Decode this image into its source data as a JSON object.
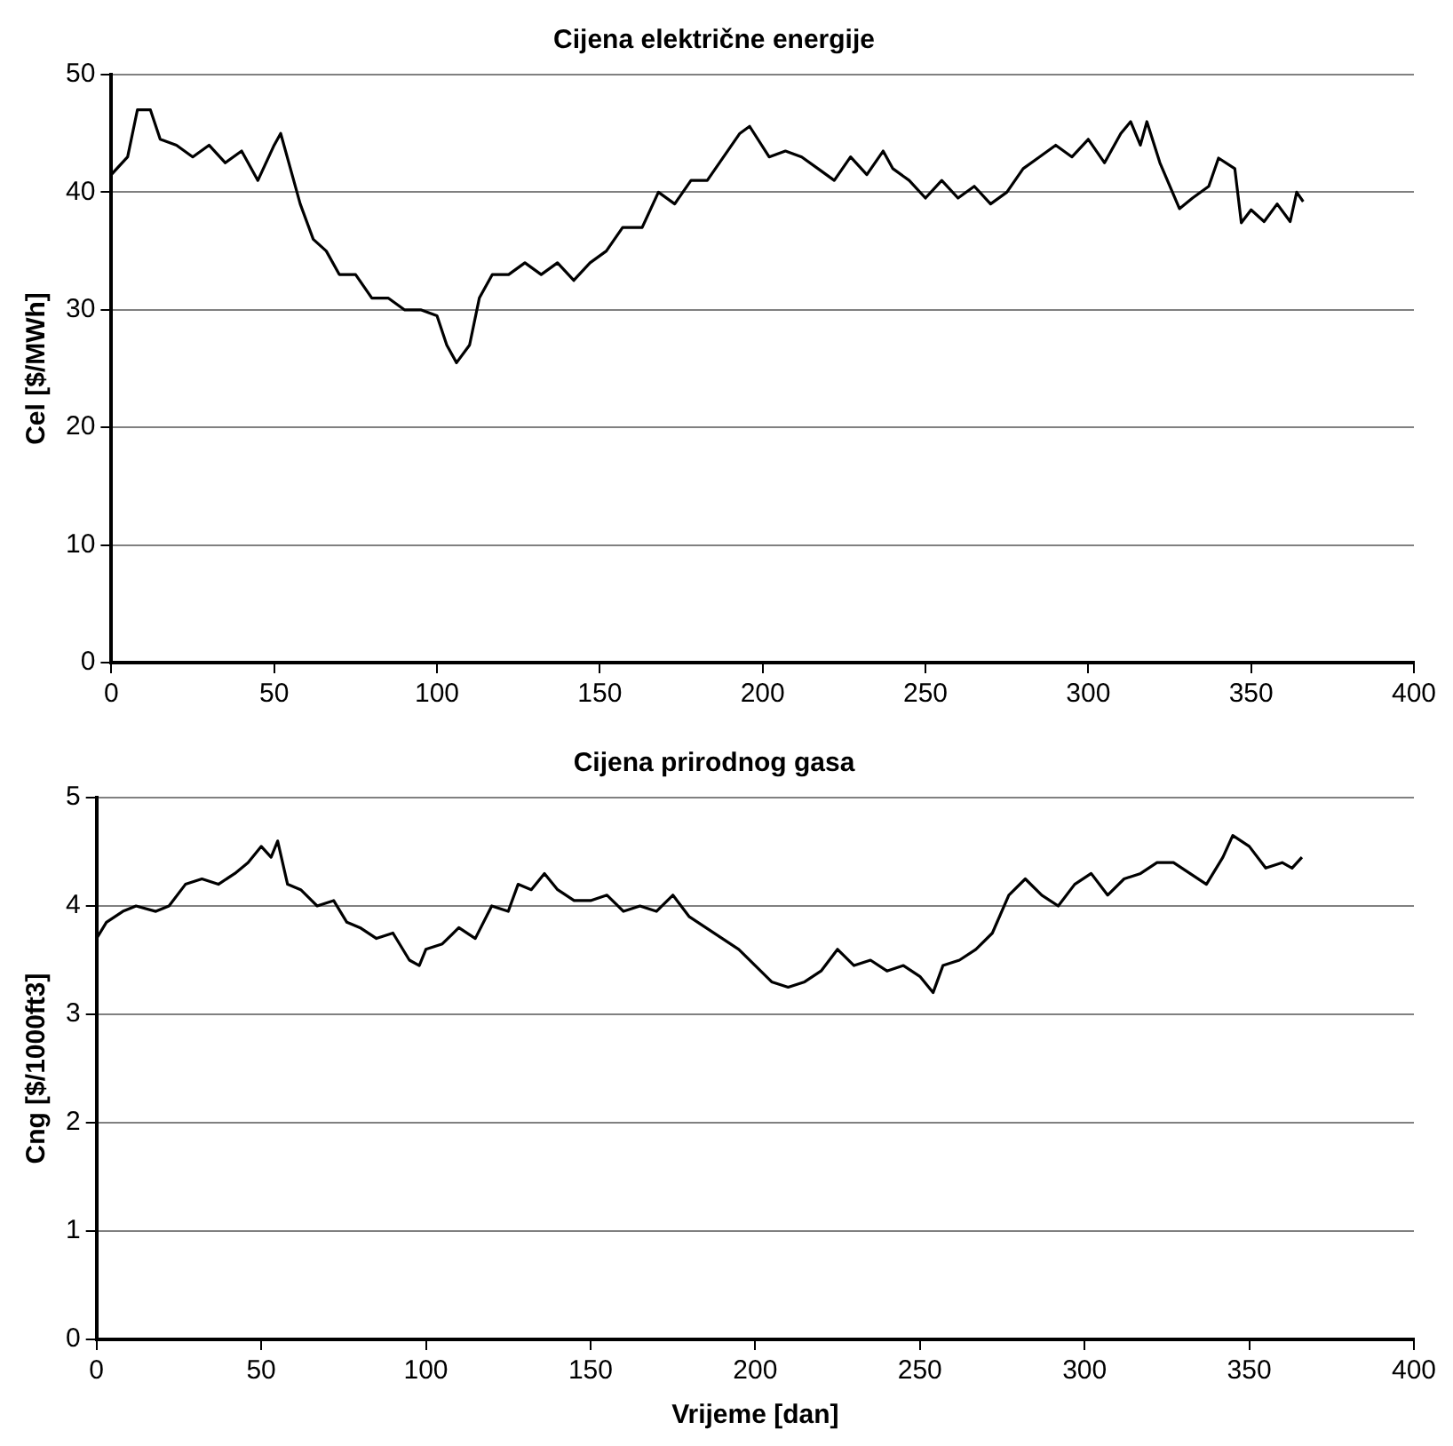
{
  "chart_data": [
    {
      "type": "line",
      "title": "Cijena električne energije",
      "ylabel": "Cel [$/MWh]",
      "xlim": [
        0,
        400
      ],
      "xticks": [
        0,
        50,
        100,
        150,
        200,
        250,
        300,
        350,
        400
      ],
      "ylim": [
        0,
        50
      ],
      "yticks": [
        0,
        10,
        20,
        30,
        40,
        50
      ],
      "grid": "y",
      "legend": false,
      "marker": "none",
      "line_style": "solid",
      "x": [
        0,
        5,
        8,
        12,
        15,
        20,
        25,
        30,
        35,
        40,
        45,
        50,
        52,
        55,
        58,
        62,
        66,
        70,
        75,
        80,
        85,
        90,
        95,
        100,
        103,
        106,
        110,
        113,
        117,
        122,
        127,
        132,
        137,
        142,
        147,
        152,
        157,
        163,
        168,
        173,
        178,
        183,
        188,
        193,
        196,
        202,
        207,
        212,
        217,
        222,
        227,
        232,
        237,
        240,
        245,
        250,
        255,
        260,
        265,
        270,
        275,
        280,
        285,
        290,
        295,
        300,
        305,
        310,
        313,
        316,
        318,
        322,
        328,
        332,
        337,
        340,
        345,
        347,
        350,
        354,
        358,
        362,
        364,
        366
      ],
      "series": [
        {
          "color": "#000000",
          "values": [
            41.5,
            43,
            47,
            47,
            44.5,
            44,
            43,
            44,
            42.5,
            43.5,
            41,
            44,
            45,
            42,
            39,
            36,
            35,
            33,
            33,
            31,
            31,
            30,
            30,
            29.5,
            27,
            25.5,
            27,
            31,
            33,
            33,
            34,
            33,
            34,
            32.5,
            34,
            35,
            37,
            37,
            40,
            39,
            41,
            41,
            43,
            45,
            45.6,
            43,
            43.5,
            43,
            42,
            41,
            43,
            41.5,
            43.5,
            42,
            41,
            39.5,
            41,
            39.5,
            40.5,
            39,
            40,
            42,
            43,
            44,
            43,
            44.5,
            42.5,
            45,
            46,
            44,
            46,
            42.5,
            38.6,
            39.5,
            40.5,
            42.9,
            42,
            37.4,
            38.5,
            37.5,
            39,
            37.5,
            40,
            39.2
          ]
        }
      ]
    },
    {
      "type": "line",
      "title": "Cijena prirodnog gasa",
      "xlabel": "Vrijeme [dan]",
      "ylabel": "Cng [$/1000ft3]",
      "xlim": [
        0,
        400
      ],
      "xticks": [
        0,
        50,
        100,
        150,
        200,
        250,
        300,
        350,
        400
      ],
      "ylim": [
        0,
        5
      ],
      "yticks": [
        0,
        1,
        2,
        3,
        4,
        5
      ],
      "grid": "y",
      "legend": false,
      "marker": "none",
      "line_style": "solid",
      "x": [
        0,
        3,
        8,
        12,
        18,
        22,
        27,
        32,
        37,
        42,
        46,
        50,
        53,
        55,
        58,
        62,
        67,
        72,
        76,
        80,
        85,
        90,
        95,
        98,
        100,
        105,
        110,
        115,
        120,
        125,
        128,
        132,
        136,
        140,
        145,
        150,
        155,
        160,
        165,
        170,
        175,
        180,
        185,
        190,
        195,
        200,
        205,
        210,
        215,
        220,
        225,
        230,
        235,
        240,
        245,
        250,
        254,
        257,
        262,
        267,
        272,
        277,
        282,
        287,
        292,
        297,
        302,
        307,
        312,
        317,
        322,
        327,
        332,
        337,
        342,
        345,
        350,
        355,
        360,
        363,
        366
      ],
      "series": [
        {
          "color": "#000000",
          "values": [
            3.7,
            3.85,
            3.95,
            4,
            3.95,
            4,
            4.2,
            4.25,
            4.2,
            4.3,
            4.4,
            4.55,
            4.45,
            4.6,
            4.2,
            4.15,
            4,
            4.05,
            3.85,
            3.8,
            3.7,
            3.75,
            3.5,
            3.45,
            3.6,
            3.65,
            3.8,
            3.7,
            4,
            3.95,
            4.2,
            4.15,
            4.3,
            4.15,
            4.05,
            4.05,
            4.1,
            3.95,
            4,
            3.95,
            4.1,
            3.9,
            3.8,
            3.7,
            3.6,
            3.45,
            3.3,
            3.25,
            3.3,
            3.4,
            3.6,
            3.45,
            3.5,
            3.4,
            3.45,
            3.35,
            3.2,
            3.45,
            3.5,
            3.6,
            3.75,
            4.1,
            4.25,
            4.1,
            4,
            4.2,
            4.3,
            4.1,
            4.25,
            4.3,
            4.4,
            4.4,
            4.3,
            4.2,
            4.45,
            4.65,
            4.55,
            4.35,
            4.4,
            4.35,
            4.45
          ]
        }
      ]
    }
  ]
}
